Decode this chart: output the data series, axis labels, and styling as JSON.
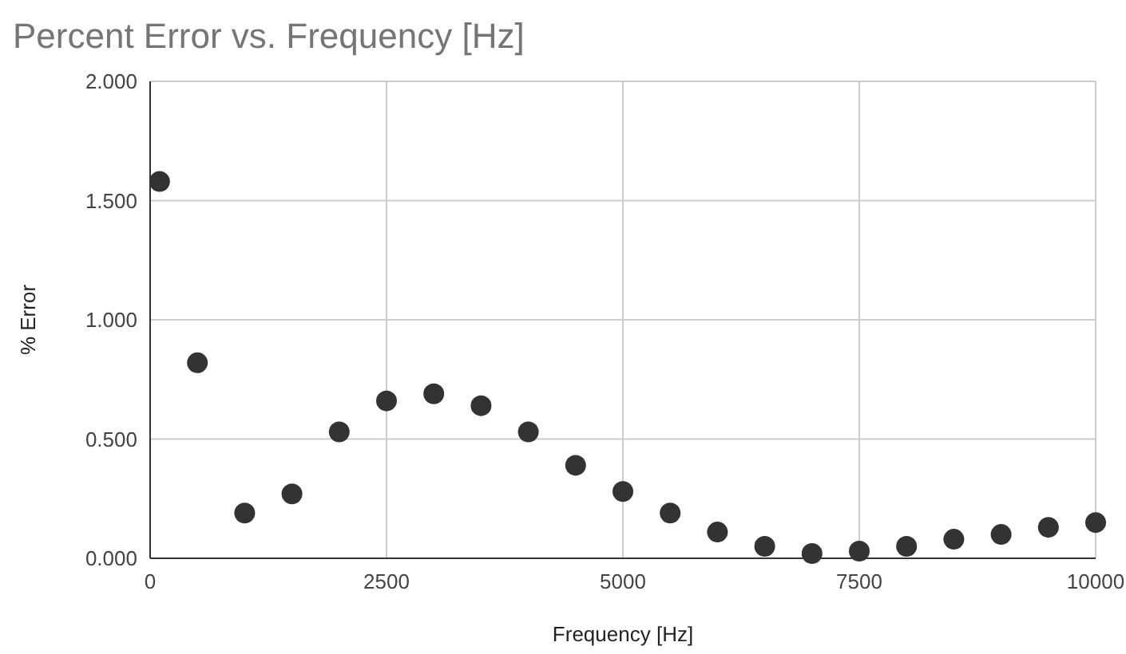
{
  "chart_data": {
    "type": "scatter",
    "title": "Percent Error vs. Frequency [Hz]",
    "xlabel": "Frequency [Hz]",
    "ylabel": "% Error",
    "x": [
      100,
      500,
      1000,
      1500,
      2000,
      2500,
      3000,
      3500,
      4000,
      4500,
      5000,
      5500,
      6000,
      6500,
      7000,
      7500,
      8000,
      8500,
      9000,
      9500,
      10000
    ],
    "series": [
      {
        "color": "#333333",
        "values": [
          1.58,
          0.82,
          0.19,
          0.27,
          0.53,
          0.66,
          0.69,
          0.64,
          0.53,
          0.39,
          0.28,
          0.19,
          0.11,
          0.05,
          0.02,
          0.03,
          0.05,
          0.08,
          0.1,
          0.13,
          0.15
        ]
      }
    ],
    "xlim": [
      0,
      10000
    ],
    "xticks": [
      0,
      2500,
      5000,
      7500,
      10000
    ],
    "ylim": [
      0,
      2
    ],
    "yticks": [
      {
        "value": 0,
        "label": "0.000"
      },
      {
        "value": 0.5,
        "label": "0.500"
      },
      {
        "value": 1,
        "label": "1.000"
      },
      {
        "value": 1.5,
        "label": "1.500"
      },
      {
        "value": 2,
        "label": "2.000"
      }
    ],
    "grid": true,
    "marker": "circle"
  }
}
